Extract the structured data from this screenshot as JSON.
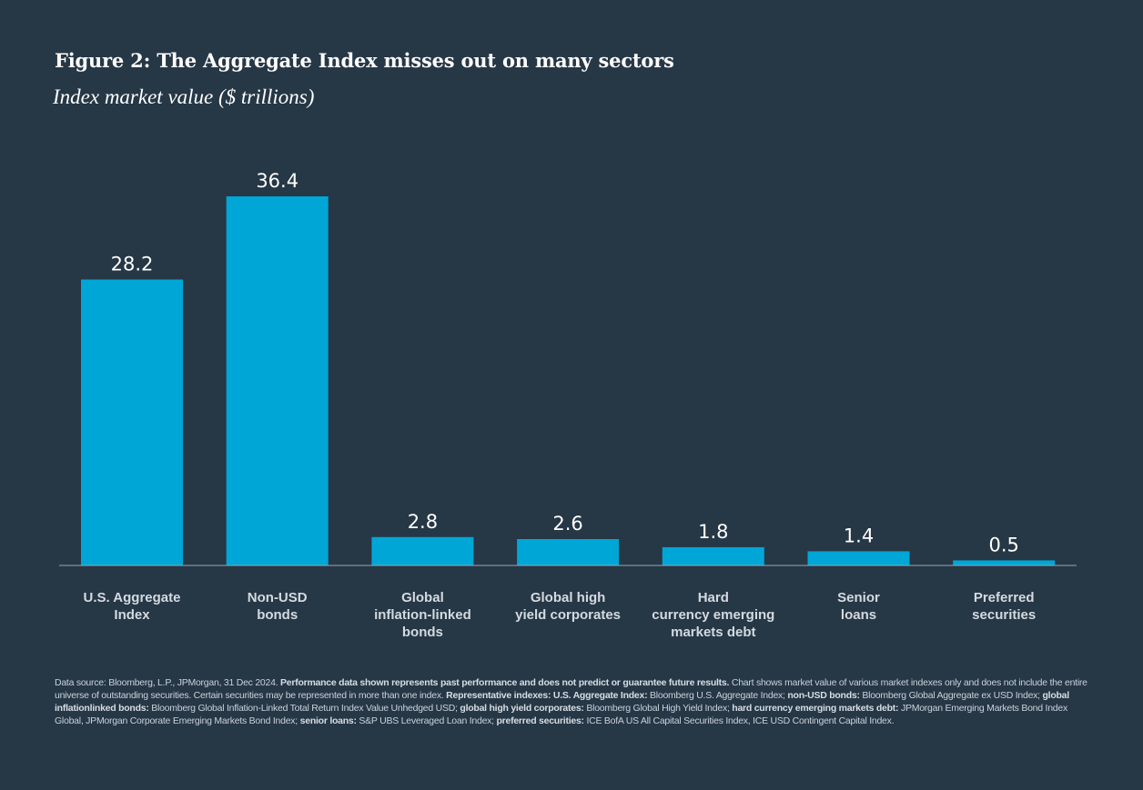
{
  "title": "Figure 2: The Aggregate Index misses out on many sectors",
  "subtitle": "Index market value ($ trillions)",
  "colors": {
    "background": "#263746",
    "bar": "#00a6d6",
    "axis": "#9aa6b0",
    "text": "#ffffff",
    "category_text": "#d4dae0"
  },
  "chart_data": {
    "type": "bar",
    "categories": [
      "U.S. Aggregate Index",
      "Non-USD bonds",
      "Global inflation-linked bonds",
      "Global high yield corporates",
      "Hard currency emerging markets debt",
      "Senior loans",
      "Preferred securities"
    ],
    "category_lines": [
      [
        "U.S. Aggregate",
        "Index"
      ],
      [
        "Non-USD",
        "bonds"
      ],
      [
        "Global",
        "inflation-linked",
        "bonds"
      ],
      [
        "Global high",
        "yield corporates"
      ],
      [
        "Hard",
        "currency emerging",
        "markets debt"
      ],
      [
        "Senior",
        "loans"
      ],
      [
        "Preferred",
        "securities"
      ]
    ],
    "values": [
      28.2,
      36.4,
      2.8,
      2.6,
      1.8,
      1.4,
      0.5
    ],
    "value_labels": [
      "28.2",
      "36.4",
      "2.8",
      "2.6",
      "1.8",
      "1.4",
      "0.5"
    ],
    "ylim": [
      0,
      36.4
    ],
    "grid": false,
    "data_labels": true
  },
  "footnote": [
    {
      "text": "Data source: Bloomberg, L.P., JPMorgan, 31 Dec 2024. ",
      "bold": false
    },
    {
      "text": "Performance data shown represents past performance and does not predict or guarantee future results.",
      "bold": true
    },
    {
      "text": " Chart shows market value of various market indexes only and does not include the entire universe of outstanding securities. Certain securities may be represented in more than one index. ",
      "bold": false
    },
    {
      "text": "Representative indexes: U.S. Aggregate Index:",
      "bold": true
    },
    {
      "text": " Bloomberg U.S. Aggregate Index; ",
      "bold": false
    },
    {
      "text": "non-USD bonds:",
      "bold": true
    },
    {
      "text": " Bloomberg Global Aggregate ex USD Index; ",
      "bold": false
    },
    {
      "text": "global inflationlinked bonds:",
      "bold": true
    },
    {
      "text": " Bloomberg Global Inflation-Linked Total Return Index Value Unhedged USD; ",
      "bold": false
    },
    {
      "text": "global high yield corporates:",
      "bold": true
    },
    {
      "text": " Bloomberg Global High Yield Index; ",
      "bold": false
    },
    {
      "text": "hard currency emerging markets debt:",
      "bold": true
    },
    {
      "text": " JPMorgan Emerging Markets Bond Index Global, JPMorgan Corporate Emerging Markets Bond Index; ",
      "bold": false
    },
    {
      "text": "senior loans:",
      "bold": true
    },
    {
      "text": " S&P UBS Leveraged Loan Index; ",
      "bold": false
    },
    {
      "text": "preferred securities:",
      "bold": true
    },
    {
      "text": " ICE BofA US All Capital Securities Index, ICE USD Contingent Capital Index.",
      "bold": false
    }
  ]
}
